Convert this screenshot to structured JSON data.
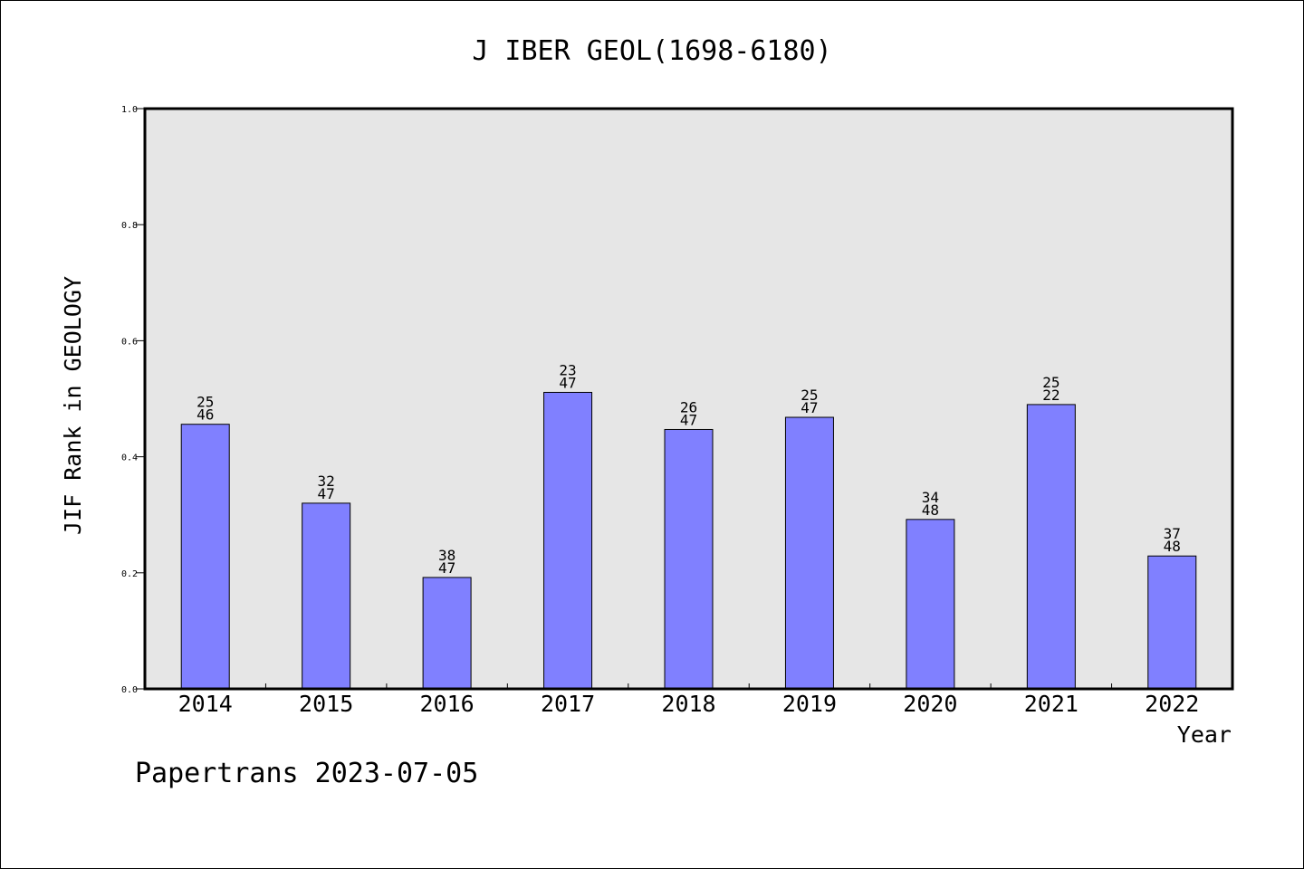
{
  "chart_data": {
    "type": "bar",
    "title": "J IBER GEOL(1698-6180)",
    "xlabel": "Year",
    "ylabel": "JIF Rank in GEOLOGY",
    "ylim": [
      0,
      1.0
    ],
    "yticks": [
      "0.0",
      "0.2",
      "0.4",
      "0.6",
      "0.8",
      "1.0"
    ],
    "grid": false,
    "categories": [
      "2014",
      "2015",
      "2016",
      "2017",
      "2018",
      "2019",
      "2020",
      "2021",
      "2022"
    ],
    "values": [
      0.456,
      0.32,
      0.192,
      0.511,
      0.447,
      0.468,
      0.292,
      0.49,
      0.229
    ],
    "label_top": [
      "25",
      "32",
      "38",
      "23",
      "26",
      "25",
      "34",
      "25",
      "37"
    ],
    "label_bottom": [
      "46",
      "47",
      "47",
      "47",
      "47",
      "47",
      "48",
      "22",
      "48"
    ],
    "colors": {
      "bar": "#8080ff",
      "plot_bg": "#e6e6e6"
    }
  },
  "footer": "Papertrans 2023-07-05"
}
